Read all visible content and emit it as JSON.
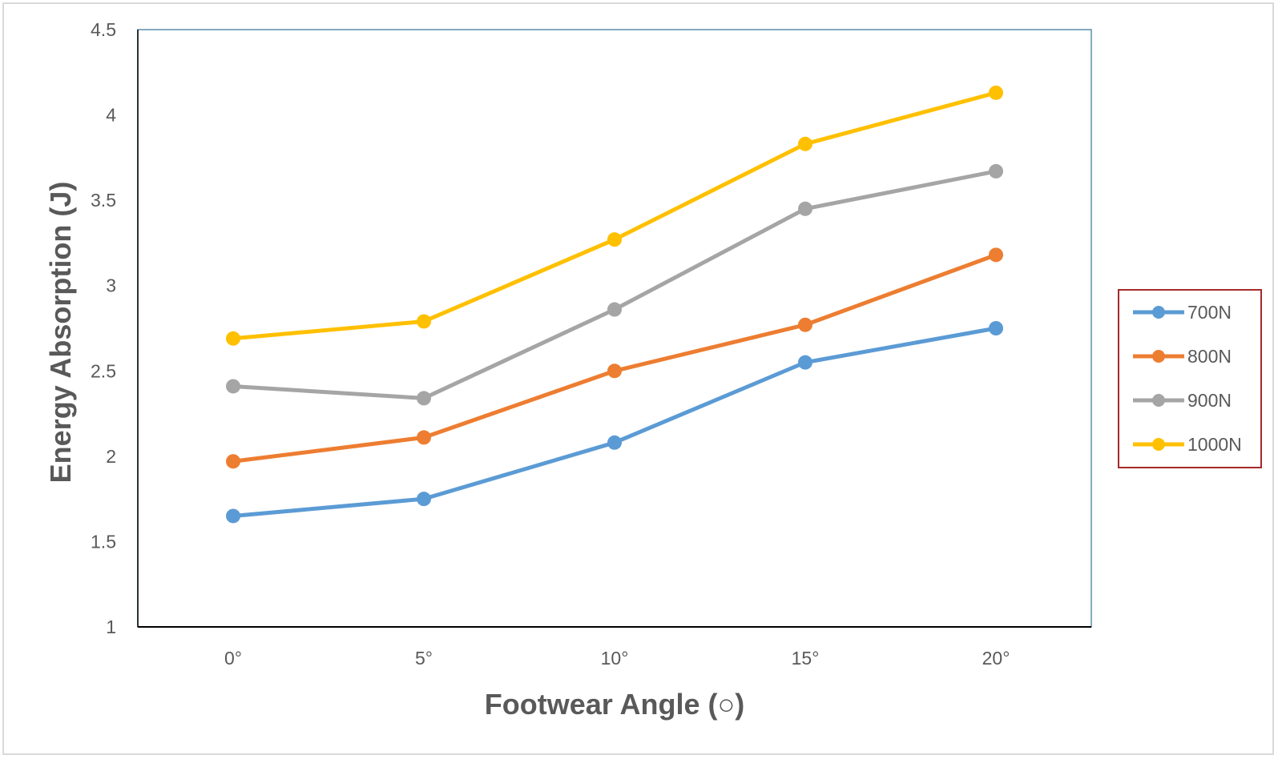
{
  "chart_data": {
    "type": "line",
    "title": "",
    "xlabel": "Footwear Angle (○)",
    "ylabel": "Energy Absorption (J)",
    "categories": [
      "0°",
      "5°",
      "10°",
      "15°",
      "20°"
    ],
    "ylim": [
      1,
      4.5
    ],
    "yticks": [
      "1",
      "1.5",
      "2",
      "2.5",
      "3",
      "3.5",
      "4",
      "4.5"
    ],
    "grid": false,
    "legend_position": "right",
    "series": [
      {
        "name": "700N",
        "color": "#5B9BD5",
        "values": [
          1.65,
          1.75,
          2.08,
          2.55,
          2.75
        ]
      },
      {
        "name": "800N",
        "color": "#ED7D31",
        "values": [
          1.97,
          2.11,
          2.5,
          2.77,
          3.18
        ]
      },
      {
        "name": "900N",
        "color": "#A5A5A5",
        "values": [
          2.41,
          2.34,
          2.86,
          3.45,
          3.67
        ]
      },
      {
        "name": "1000N",
        "color": "#FFC000",
        "values": [
          2.69,
          2.79,
          3.27,
          3.83,
          4.13
        ]
      }
    ]
  }
}
